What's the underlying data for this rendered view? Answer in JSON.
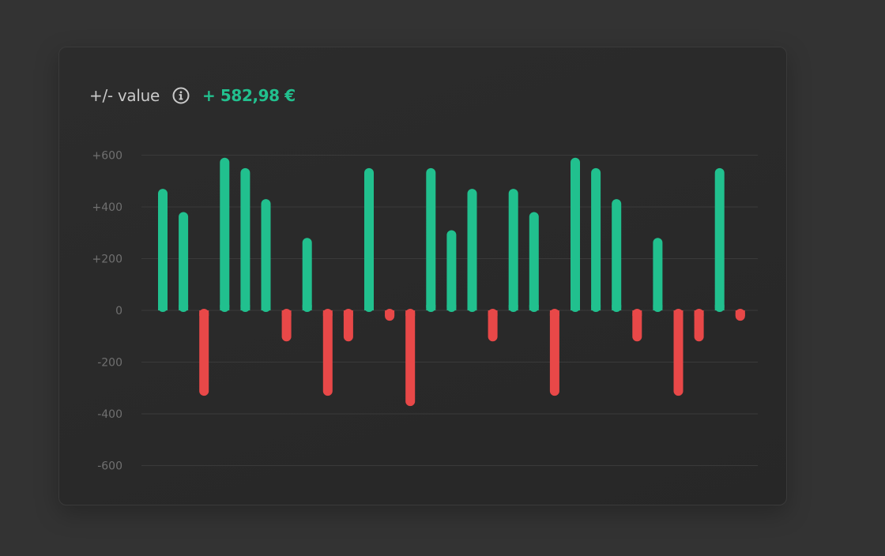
{
  "header": {
    "title": "+/- value",
    "total": "+ 582,98 €"
  },
  "colors": {
    "positive": "#21c08e",
    "negative": "#e84848",
    "grid": "#3a3a3a",
    "tick": "#707070"
  },
  "chart_data": {
    "type": "bar",
    "title": "",
    "xlabel": "",
    "ylabel": "",
    "ylim": [
      -600,
      600
    ],
    "yticks": [
      600,
      400,
      200,
      0,
      -200,
      -400,
      -600
    ],
    "ytick_labels": [
      "+600",
      "+400",
      "+200",
      "0",
      "-200",
      "-400",
      "-600"
    ],
    "grid": true,
    "legend": "none",
    "values": [
      470,
      380,
      -330,
      590,
      550,
      430,
      -120,
      280,
      -330,
      -120,
      550,
      -40,
      -370,
      550,
      310,
      470,
      -120,
      470,
      380,
      -330,
      590,
      550,
      430,
      -120,
      280,
      -330,
      -120,
      550,
      -40
    ]
  }
}
